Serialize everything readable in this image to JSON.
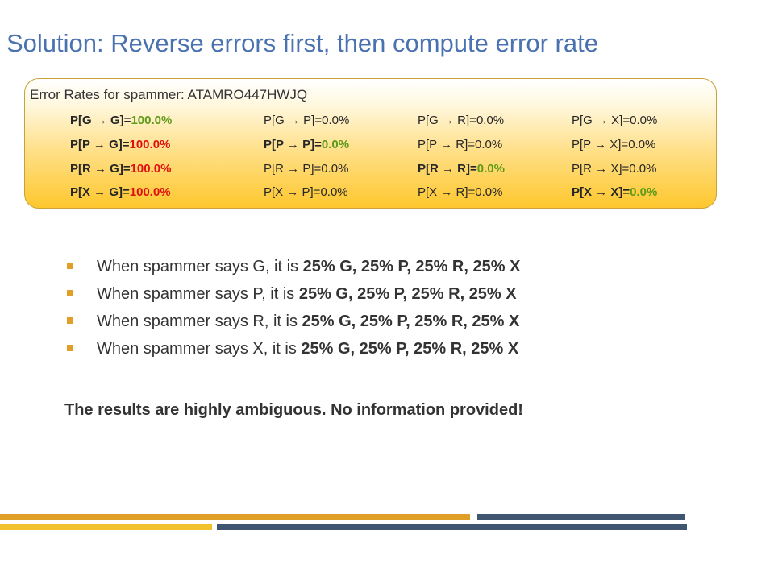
{
  "slide": {
    "title": "Solution: Reverse errors first, then compute error rate"
  },
  "error_box": {
    "title": "Error Rates for spammer: ATAMRO447HWJQ",
    "rows": [
      [
        {
          "label": "P[G → G]=",
          "value": "100.0%"
        },
        {
          "label": "P[G → P]=",
          "value": "0.0%"
        },
        {
          "label": "P[G → R]=",
          "value": "0.0%"
        },
        {
          "label": "P[G → X]=",
          "value": "0.0%"
        }
      ],
      [
        {
          "label": "P[P → G]=",
          "value": "100.0%"
        },
        {
          "label": "P[P → P]=",
          "value": "0.0%"
        },
        {
          "label": "P[P → R]=",
          "value": "0.0%"
        },
        {
          "label": "P[P → X]=",
          "value": "0.0%"
        }
      ],
      [
        {
          "label": "P[R → G]=",
          "value": "100.0%"
        },
        {
          "label": "P[R → P]=",
          "value": "0.0%"
        },
        {
          "label": "P[R → R]=",
          "value": "0.0%"
        },
        {
          "label": "P[R → X]=",
          "value": "0.0%"
        }
      ],
      [
        {
          "label": "P[X → G]=",
          "value": "100.0%"
        },
        {
          "label": "P[X → P]=",
          "value": "0.0%"
        },
        {
          "label": "P[X → R]=",
          "value": "0.0%"
        },
        {
          "label": "P[X → X]=",
          "value": "0.0%"
        }
      ]
    ]
  },
  "bullets": [
    {
      "text": "When spammer says G, it is ",
      "bold": "25% G, 25% P, 25% R, 25% X"
    },
    {
      "text": "When spammer says P, it is ",
      "bold": "25% G, 25% P, 25% R, 25% X"
    },
    {
      "text": "When spammer says R, it is ",
      "bold": "25% G, 25% P, 25% R, 25% X"
    },
    {
      "text": "When spammer says X, it is ",
      "bold": "25% G, 25% P, 25% R, 25% X"
    }
  ],
  "conclusion": "The results are highly ambiguous. No information provided!",
  "colors": {
    "title": "#4a72b0",
    "green_value": "#5e9a1a",
    "red_value": "#e01010",
    "bullet": "#e0a028",
    "bar_gold": "#e0a028",
    "bar_yellow": "#f2c12e",
    "bar_slate": "#3f5570"
  }
}
